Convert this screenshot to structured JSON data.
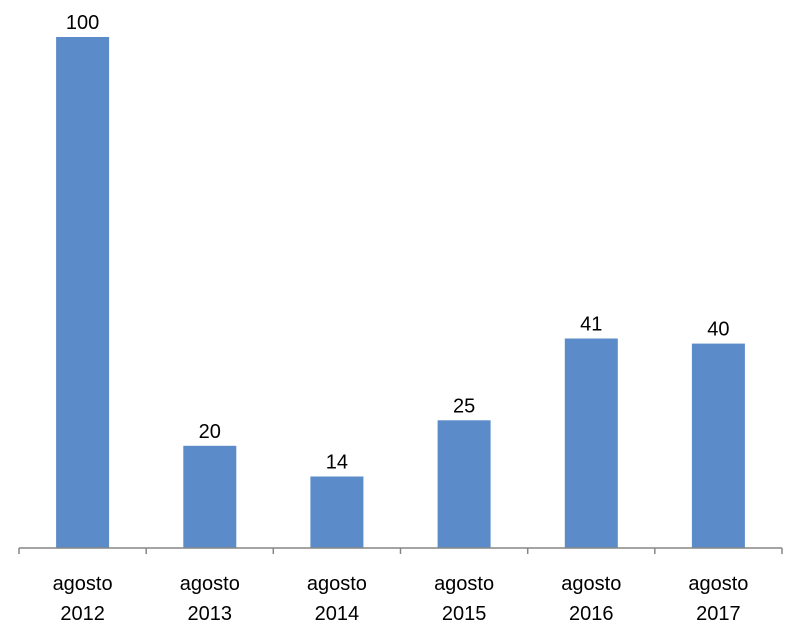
{
  "chart_data": {
    "type": "bar",
    "categories": [
      [
        "agosto",
        "2012"
      ],
      [
        "agosto",
        "2013"
      ],
      [
        "agosto",
        "2014"
      ],
      [
        "agosto",
        "2015"
      ],
      [
        "agosto",
        "2016"
      ],
      [
        "agosto",
        "2017"
      ]
    ],
    "values": [
      100,
      20,
      14,
      25,
      41,
      40
    ],
    "data_labels": [
      "100",
      "20",
      "14",
      "25",
      "41",
      "40"
    ],
    "title": "",
    "xlabel": "",
    "ylabel": "",
    "ylim": [
      0,
      100
    ],
    "grid": false,
    "legend": "none",
    "colors": {
      "bar": "#5B8CC9",
      "axis": "#868686"
    }
  }
}
